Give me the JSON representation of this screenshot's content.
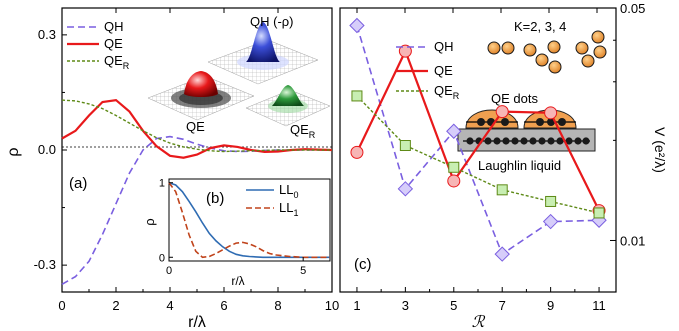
{
  "chart_data": [
    {
      "panel": "(a)",
      "type": "line",
      "xlabel": "r/λ",
      "ylabel": "ρ",
      "xlim": [
        0,
        10
      ],
      "ylim": [
        -0.37,
        0.37
      ],
      "xticks": [
        "0",
        "2",
        "4",
        "6",
        "8",
        "10"
      ],
      "yticks": [
        "0.3",
        "0.0",
        "-0.3"
      ],
      "legend_position": "top-left",
      "series": [
        {
          "name": "QH",
          "color": "#7a5fe0",
          "style": "dashed",
          "x": [
            0,
            0.5,
            1,
            1.5,
            2,
            2.5,
            3,
            3.5,
            4,
            4.5,
            5,
            5.5,
            6,
            6.5,
            7,
            7.5,
            8,
            9,
            10
          ],
          "y": [
            -0.35,
            -0.33,
            -0.29,
            -0.22,
            -0.14,
            -0.06,
            0.0,
            0.03,
            0.035,
            0.028,
            0.015,
            0.005,
            -0.002,
            -0.004,
            -0.003,
            -0.001,
            0.0,
            0.0,
            0.0
          ]
        },
        {
          "name": "QE",
          "color": "#e8191b",
          "style": "solid",
          "x": [
            0,
            0.5,
            1,
            1.5,
            2,
            2.5,
            3,
            3.5,
            4,
            4.5,
            5,
            5.5,
            6,
            6.5,
            7,
            7.5,
            8,
            8.5,
            9,
            9.5,
            10
          ],
          "y": [
            0.03,
            0.05,
            0.09,
            0.125,
            0.13,
            0.1,
            0.05,
            0.01,
            -0.015,
            -0.02,
            -0.012,
            0.005,
            0.012,
            0.008,
            0.0,
            -0.005,
            -0.004,
            0.0,
            0.002,
            0.001,
            0.0
          ]
        },
        {
          "name": "QE",
          "subscript": "R",
          "color": "#5e8a17",
          "style": "dashed",
          "x": [
            0,
            0.5,
            1,
            1.5,
            2,
            2.5,
            3,
            3.5,
            4,
            4.5,
            5,
            5.5,
            6,
            7,
            8,
            9,
            10
          ],
          "y": [
            0.13,
            0.128,
            0.12,
            0.108,
            0.09,
            0.07,
            0.05,
            0.032,
            0.018,
            0.008,
            0.002,
            -0.002,
            -0.004,
            -0.002,
            0.0,
            0.0,
            0.0
          ]
        }
      ],
      "annotations": [
        "QH (-ρ)",
        "QE",
        "QE",
        "R"
      ]
    },
    {
      "panel": "(b)",
      "type": "line",
      "xlabel": "r/λ",
      "ylabel": "ρ",
      "xlim": [
        0,
        6
      ],
      "ylim": [
        -0.05,
        1.05
      ],
      "xticks": [
        "0",
        "5"
      ],
      "yticks": [
        "0",
        "1"
      ],
      "legend_position": "top-right",
      "series": [
        {
          "name": "LL",
          "subscript": "0",
          "color": "#2f6cb3",
          "style": "solid",
          "x": [
            0,
            0.25,
            0.5,
            0.75,
            1,
            1.25,
            1.5,
            1.75,
            2,
            2.25,
            2.5,
            2.75,
            3,
            3.5,
            4,
            5,
            6
          ],
          "y": [
            1.0,
            0.97,
            0.88,
            0.75,
            0.61,
            0.46,
            0.32,
            0.22,
            0.14,
            0.08,
            0.04,
            0.02,
            0.01,
            0.0,
            0.0,
            0.0,
            0.0
          ]
        },
        {
          "name": "LL",
          "subscript": "1",
          "color": "#c0431b",
          "style": "dashed",
          "x": [
            0,
            0.25,
            0.5,
            0.75,
            1,
            1.25,
            1.5,
            1.75,
            2,
            2.25,
            2.5,
            2.75,
            3,
            3.25,
            3.5,
            3.75,
            4,
            4.5,
            5,
            6
          ],
          "y": [
            1.0,
            0.88,
            0.6,
            0.3,
            0.08,
            0.0,
            0.01,
            0.05,
            0.1,
            0.15,
            0.19,
            0.2,
            0.18,
            0.14,
            0.09,
            0.05,
            0.03,
            0.01,
            0.0,
            0.0
          ]
        }
      ]
    },
    {
      "panel": "(c)",
      "type": "line",
      "xlabel": "ℛ",
      "ylabel": "V (e²/λ)",
      "xlim": [
        0.3,
        11.7
      ],
      "ylim": [
        0.007,
        0.05
      ],
      "xticks": [
        "1",
        "3",
        "5",
        "7",
        "9",
        "11"
      ],
      "yticks": [
        "0.05",
        "0.01"
      ],
      "legend_position": "top-left",
      "series": [
        {
          "name": "QH",
          "color": "#7a5fe0",
          "style": "dashed",
          "marker": "diamond",
          "fill": "#d6cdfa",
          "x": [
            1,
            3,
            5,
            7,
            9,
            11
          ],
          "y": [
            0.0443,
            0.0143,
            0.0213,
            0.0091,
            0.0114,
            0.0115
          ]
        },
        {
          "name": "QE",
          "color": "#e8191b",
          "style": "solid",
          "marker": "circle",
          "fill": "#f7b5b5",
          "x": [
            1,
            3,
            5,
            7,
            9,
            11
          ],
          "y": [
            0.0184,
            0.0371,
            0.0151,
            0.0244,
            0.0242,
            0.0123
          ]
        },
        {
          "name": "QE",
          "subscript": "R",
          "color": "#5e8a17",
          "style": "dashed",
          "marker": "square",
          "fill": "#c8eeb2",
          "x": [
            1,
            3,
            5,
            7,
            9,
            11
          ],
          "y": [
            0.0272,
            0.0193,
            0.0166,
            0.0142,
            0.0131,
            0.0121
          ]
        }
      ],
      "annotations": [
        "K=2, 3, 4",
        "QE dots",
        "Laughlin liquid"
      ]
    }
  ]
}
